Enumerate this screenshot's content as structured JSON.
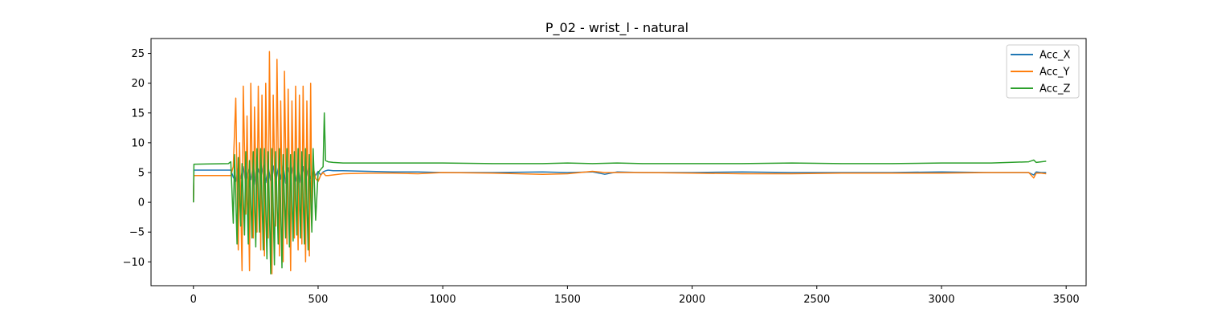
{
  "chart_data": {
    "type": "line",
    "title": "P_02 - wrist_l - natural",
    "xlabel": "",
    "ylabel": "",
    "xlim": [
      -170,
      3580
    ],
    "ylim": [
      -14,
      27.5
    ],
    "xticks": [
      0,
      500,
      1000,
      1500,
      2000,
      2500,
      3000,
      3500
    ],
    "yticks": [
      -10,
      -5,
      0,
      5,
      10,
      15,
      20,
      25
    ],
    "xtick_labels": [
      "0",
      "500",
      "1000",
      "1500",
      "2000",
      "2500",
      "3000",
      "3500"
    ],
    "ytick_labels": [
      "−10",
      "−5",
      "0",
      "5",
      "10",
      "15",
      "20",
      "25"
    ],
    "grid": false,
    "legend_position": "top-right",
    "series": [
      {
        "name": "Acc_X",
        "color": "#1f77b4",
        "x": [
          0,
          2,
          150,
          160,
          170,
          180,
          190,
          200,
          210,
          220,
          230,
          240,
          250,
          260,
          270,
          280,
          290,
          300,
          310,
          320,
          330,
          340,
          350,
          360,
          370,
          380,
          390,
          400,
          410,
          420,
          430,
          440,
          450,
          460,
          470,
          480,
          490,
          500,
          510,
          520,
          530,
          540,
          560,
          600,
          700,
          800,
          900,
          1000,
          1200,
          1400,
          1500,
          1600,
          1650,
          1700,
          1800,
          2000,
          2200,
          2400,
          2600,
          2800,
          3000,
          3200,
          3350,
          3370,
          3380,
          3400,
          3420
        ],
        "values": [
          0,
          5.4,
          5.4,
          4.2,
          3.5,
          5.8,
          4.0,
          6.0,
          3.2,
          5.5,
          3.8,
          6.3,
          3.0,
          5.6,
          4.1,
          6.2,
          3.3,
          5.9,
          3.6,
          6.1,
          3.4,
          5.7,
          3.9,
          6.2,
          3.2,
          5.8,
          4.0,
          6.1,
          3.5,
          5.7,
          3.3,
          6.0,
          3.7,
          5.8,
          4.0,
          5.3,
          4.5,
          5.2,
          4.6,
          5.1,
          5.3,
          5.4,
          5.3,
          5.3,
          5.2,
          5.1,
          5.1,
          5.0,
          5.0,
          5.1,
          5.0,
          5.1,
          4.7,
          5.1,
          5.0,
          5.0,
          5.1,
          5.0,
          5.0,
          5.0,
          5.1,
          5.0,
          5.0,
          4.6,
          5.1,
          5.0,
          5.0
        ]
      },
      {
        "name": "Acc_Y",
        "color": "#ff7f0e",
        "x": [
          0,
          2,
          150,
          160,
          170,
          175,
          180,
          185,
          195,
          200,
          210,
          215,
          225,
          230,
          240,
          245,
          255,
          260,
          270,
          275,
          285,
          290,
          300,
          305,
          315,
          320,
          330,
          335,
          345,
          350,
          360,
          365,
          375,
          380,
          390,
          395,
          405,
          410,
          420,
          425,
          435,
          440,
          450,
          455,
          465,
          470,
          475,
          480,
          490,
          500,
          510,
          520,
          530,
          540,
          560,
          600,
          700,
          800,
          900,
          1000,
          1200,
          1400,
          1500,
          1600,
          1650,
          1700,
          1800,
          2000,
          2200,
          2400,
          2600,
          2800,
          3000,
          3200,
          3350,
          3370,
          3380,
          3400,
          3420
        ],
        "values": [
          0,
          4.5,
          4.5,
          6.0,
          17.5,
          3.0,
          -8.0,
          10.0,
          -11.5,
          19.5,
          -2.0,
          14.5,
          -11.5,
          20.0,
          -6.0,
          16.0,
          -5.0,
          19.5,
          -8.0,
          18.0,
          -9.0,
          20.0,
          -6.0,
          25.3,
          -12.0,
          18.0,
          -4.0,
          24.0,
          -9.0,
          17.0,
          -10.0,
          22.0,
          -7.0,
          19.0,
          -11.5,
          17.0,
          -6.0,
          19.5,
          -8.0,
          18.0,
          -7.0,
          19.5,
          -10.0,
          17.0,
          -9.0,
          20.0,
          -4.0,
          6.0,
          4.0,
          3.5,
          4.5,
          5.0,
          4.5,
          4.5,
          4.6,
          4.8,
          4.9,
          4.9,
          4.8,
          5.0,
          4.9,
          4.7,
          4.8,
          5.2,
          5.0,
          5.0,
          5.0,
          4.9,
          4.8,
          4.8,
          4.9,
          4.9,
          4.9,
          5.0,
          5.0,
          4.1,
          4.9,
          4.9,
          4.8
        ]
      },
      {
        "name": "Acc_Z",
        "color": "#2ca02c",
        "x": [
          0,
          2,
          140,
          150,
          160,
          165,
          175,
          180,
          190,
          195,
          205,
          210,
          220,
          225,
          235,
          240,
          250,
          255,
          265,
          270,
          280,
          285,
          295,
          300,
          310,
          315,
          325,
          330,
          340,
          345,
          355,
          360,
          370,
          375,
          385,
          390,
          400,
          405,
          415,
          420,
          430,
          435,
          445,
          450,
          460,
          465,
          475,
          480,
          490,
          500,
          510,
          520,
          525,
          530,
          540,
          560,
          600,
          700,
          800,
          1000,
          1200,
          1400,
          1500,
          1600,
          1700,
          1800,
          2000,
          2200,
          2400,
          2600,
          2800,
          3000,
          3200,
          3350,
          3370,
          3380,
          3400,
          3420
        ],
        "values": [
          0,
          6.4,
          6.5,
          6.8,
          -3.5,
          8.0,
          -7.0,
          7.5,
          -4.0,
          6.5,
          -5.5,
          8.5,
          -7.0,
          7.0,
          -6.0,
          8.5,
          -7.5,
          9.0,
          -5.0,
          9.0,
          -8.0,
          9.0,
          -9.5,
          8.5,
          -12.0,
          9.0,
          -10.5,
          8.5,
          -7.0,
          9.0,
          -11.0,
          8.0,
          -6.0,
          9.0,
          -7.5,
          8.0,
          -6.5,
          8.5,
          -5.5,
          9.0,
          -6.0,
          8.5,
          -7.0,
          9.0,
          -8.0,
          8.0,
          -5.0,
          9.0,
          -3.0,
          5.0,
          5.5,
          6.0,
          15.0,
          7.0,
          6.8,
          6.7,
          6.6,
          6.6,
          6.6,
          6.6,
          6.5,
          6.5,
          6.6,
          6.5,
          6.6,
          6.5,
          6.5,
          6.5,
          6.6,
          6.5,
          6.5,
          6.6,
          6.6,
          6.8,
          7.1,
          6.7,
          6.8,
          6.9
        ]
      }
    ]
  }
}
